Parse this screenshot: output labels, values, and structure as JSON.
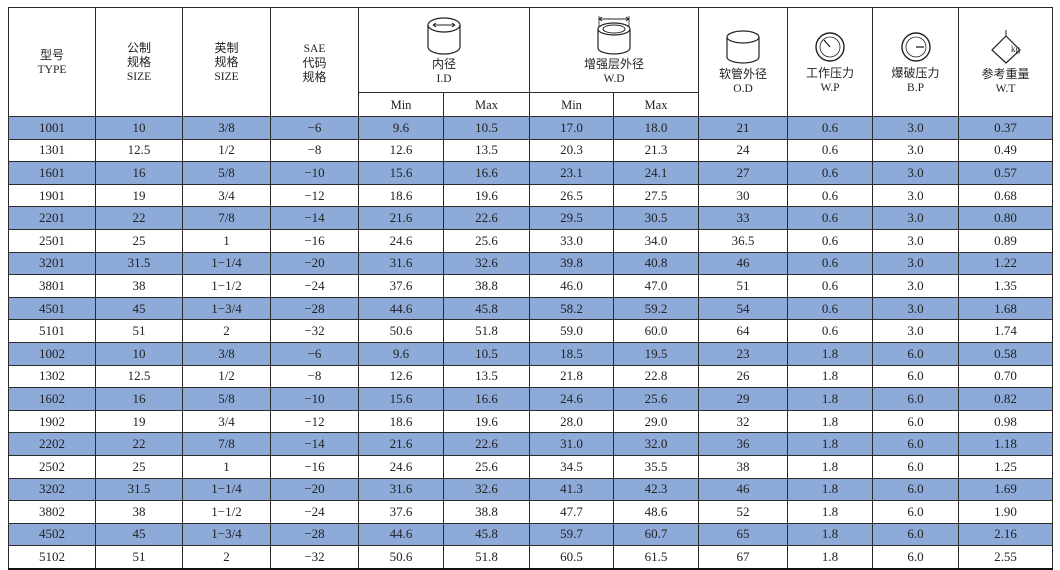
{
  "headers": {
    "type_zh": "型号",
    "type_en": "TYPE",
    "metric_zh1": "公制",
    "metric_zh2": "规格",
    "metric_en": "SIZE",
    "inch_zh1": "英制",
    "inch_zh2": "规格",
    "inch_en": "SIZE",
    "sae_en": "SAE",
    "sae_zh1": "代码",
    "sae_zh2": "规格",
    "id_zh": "内径",
    "id_en": "I.D",
    "wd_zh": "增强层外径",
    "wd_en": "W.D",
    "min": "Min",
    "max": "Max",
    "od_zh": "软管外径",
    "od_en": "O.D",
    "wp_zh": "工作压力",
    "wp_en": "W.P",
    "bp_zh": "爆破压力",
    "bp_en": "B.P",
    "wt_zh": "参考重量",
    "wt_en": "W.T",
    "kg_label": "kg"
  },
  "rows": [
    [
      "1001",
      "10",
      "3/8",
      "−6",
      "9.6",
      "10.5",
      "17.0",
      "18.0",
      "21",
      "0.6",
      "3.0",
      "0.37"
    ],
    [
      "1301",
      "12.5",
      "1/2",
      "−8",
      "12.6",
      "13.5",
      "20.3",
      "21.3",
      "24",
      "0.6",
      "3.0",
      "0.49"
    ],
    [
      "1601",
      "16",
      "5/8",
      "−10",
      "15.6",
      "16.6",
      "23.1",
      "24.1",
      "27",
      "0.6",
      "3.0",
      "0.57"
    ],
    [
      "1901",
      "19",
      "3/4",
      "−12",
      "18.6",
      "19.6",
      "26.5",
      "27.5",
      "30",
      "0.6",
      "3.0",
      "0.68"
    ],
    [
      "2201",
      "22",
      "7/8",
      "−14",
      "21.6",
      "22.6",
      "29.5",
      "30.5",
      "33",
      "0.6",
      "3.0",
      "0.80"
    ],
    [
      "2501",
      "25",
      "1",
      "−16",
      "24.6",
      "25.6",
      "33.0",
      "34.0",
      "36.5",
      "0.6",
      "3.0",
      "0.89"
    ],
    [
      "3201",
      "31.5",
      "1−1/4",
      "−20",
      "31.6",
      "32.6",
      "39.8",
      "40.8",
      "46",
      "0.6",
      "3.0",
      "1.22"
    ],
    [
      "3801",
      "38",
      "1−1/2",
      "−24",
      "37.6",
      "38.8",
      "46.0",
      "47.0",
      "51",
      "0.6",
      "3.0",
      "1.35"
    ],
    [
      "4501",
      "45",
      "1−3/4",
      "−28",
      "44.6",
      "45.8",
      "58.2",
      "59.2",
      "54",
      "0.6",
      "3.0",
      "1.68"
    ],
    [
      "5101",
      "51",
      "2",
      "−32",
      "50.6",
      "51.8",
      "59.0",
      "60.0",
      "64",
      "0.6",
      "3.0",
      "1.74"
    ],
    [
      "1002",
      "10",
      "3/8",
      "−6",
      "9.6",
      "10.5",
      "18.5",
      "19.5",
      "23",
      "1.8",
      "6.0",
      "0.58"
    ],
    [
      "1302",
      "12.5",
      "1/2",
      "−8",
      "12.6",
      "13.5",
      "21.8",
      "22.8",
      "26",
      "1.8",
      "6.0",
      "0.70"
    ],
    [
      "1602",
      "16",
      "5/8",
      "−10",
      "15.6",
      "16.6",
      "24.6",
      "25.6",
      "29",
      "1.8",
      "6.0",
      "0.82"
    ],
    [
      "1902",
      "19",
      "3/4",
      "−12",
      "18.6",
      "19.6",
      "28.0",
      "29.0",
      "32",
      "1.8",
      "6.0",
      "0.98"
    ],
    [
      "2202",
      "22",
      "7/8",
      "−14",
      "21.6",
      "22.6",
      "31.0",
      "32.0",
      "36",
      "1.8",
      "6.0",
      "1.18"
    ],
    [
      "2502",
      "25",
      "1",
      "−16",
      "24.6",
      "25.6",
      "34.5",
      "35.5",
      "38",
      "1.8",
      "6.0",
      "1.25"
    ],
    [
      "3202",
      "31.5",
      "1−1/4",
      "−20",
      "31.6",
      "32.6",
      "41.3",
      "42.3",
      "46",
      "1.8",
      "6.0",
      "1.69"
    ],
    [
      "3802",
      "38",
      "1−1/2",
      "−24",
      "37.6",
      "38.8",
      "47.7",
      "48.6",
      "52",
      "1.8",
      "6.0",
      "1.90"
    ],
    [
      "4502",
      "45",
      "1−3/4",
      "−28",
      "44.6",
      "45.8",
      "59.7",
      "60.7",
      "65",
      "1.8",
      "6.0",
      "2.16"
    ],
    [
      "5102",
      "51",
      "2",
      "−32",
      "50.6",
      "51.8",
      "60.5",
      "61.5",
      "67",
      "1.8",
      "6.0",
      "2.55"
    ]
  ],
  "colors": {
    "band": "#8eaad8",
    "white": "#ffffff",
    "border": "#2a2a2a"
  }
}
